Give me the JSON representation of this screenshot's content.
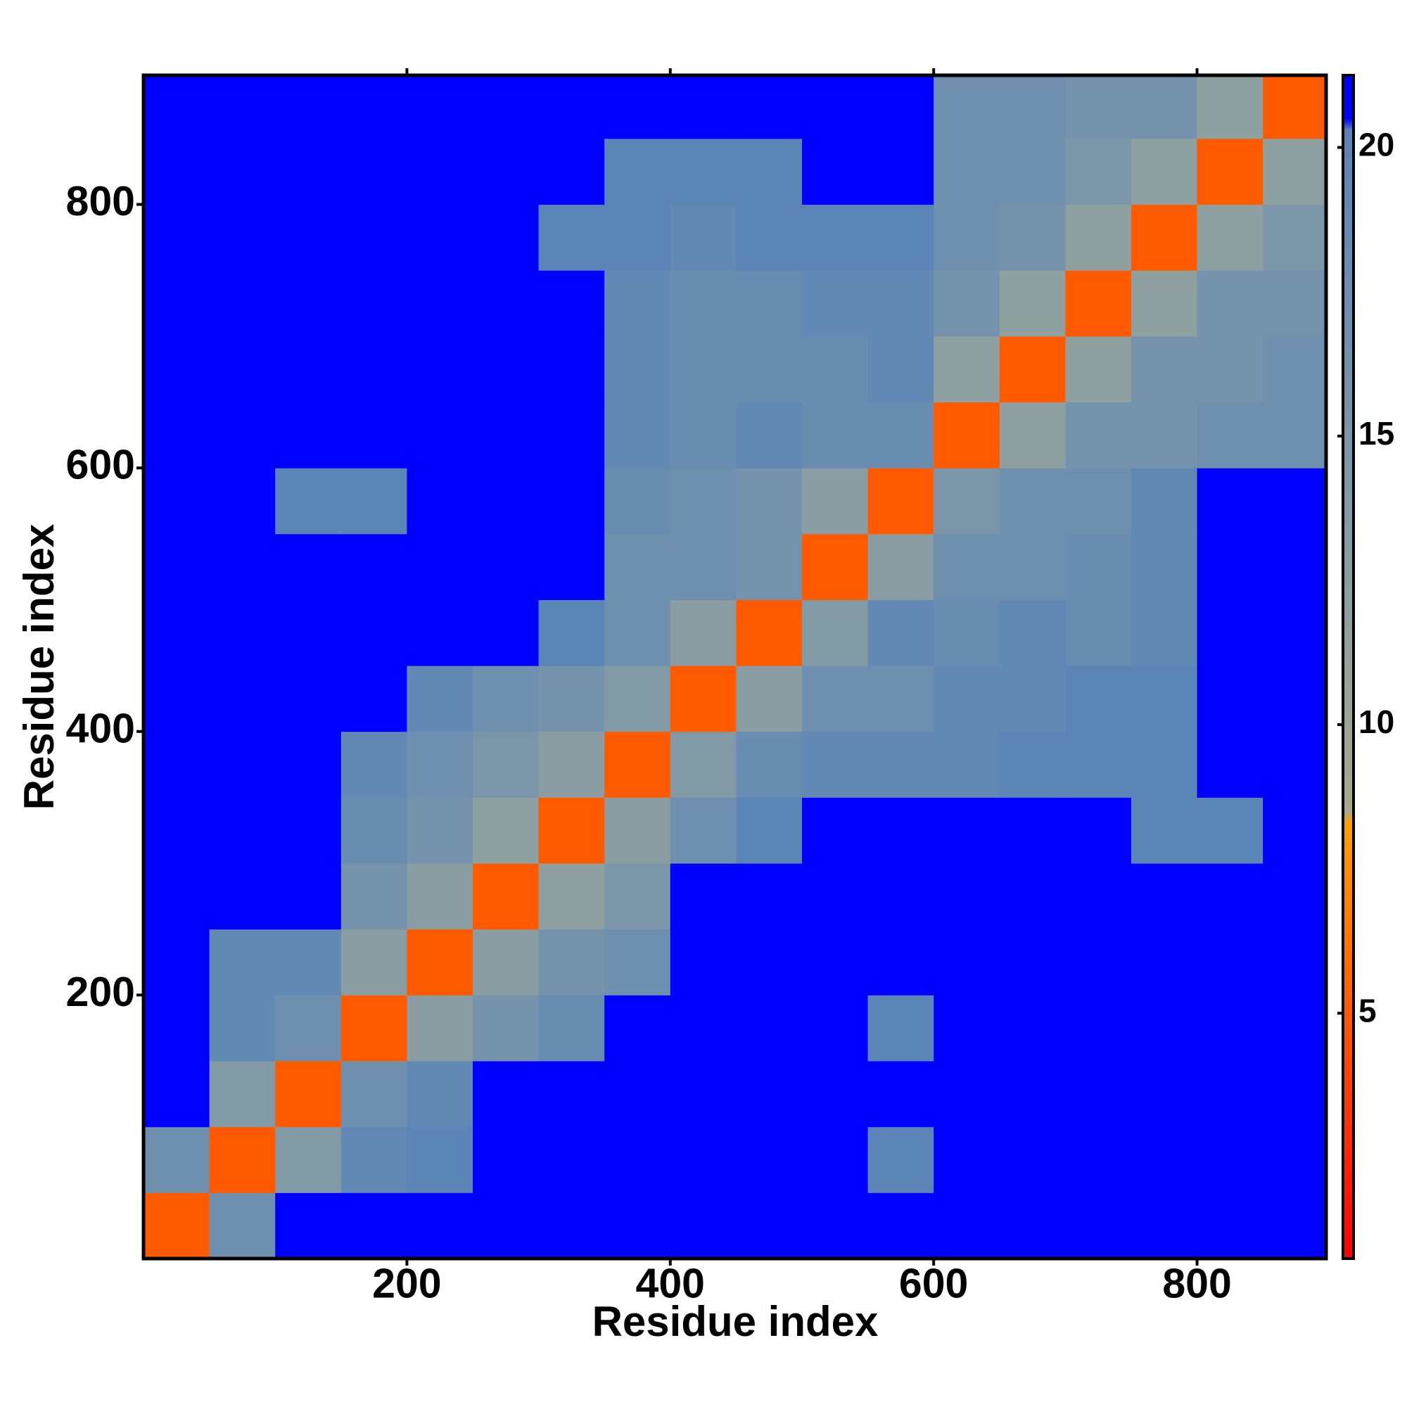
{
  "chart_data": {
    "type": "heatmap",
    "xlabel": "Residue index",
    "ylabel": "Residue index",
    "bins": [
      0,
      50,
      100,
      150,
      200,
      250,
      300,
      350,
      400,
      450,
      500,
      550,
      600,
      650,
      700,
      750,
      800,
      850,
      898
    ],
    "xlim": [
      0,
      898
    ],
    "ylim": [
      0,
      898
    ],
    "xticks": [
      200,
      400,
      600,
      800
    ],
    "yticks": [
      200,
      400,
      600,
      800
    ],
    "zlim": [
      0.75,
      21.25
    ],
    "zticks": [
      5,
      10,
      15,
      20
    ],
    "colorscale": [
      [
        0.75,
        "#ff0000"
      ],
      [
        5,
        "#ff5a00"
      ],
      [
        8.3,
        "#ffa000"
      ],
      [
        8.5,
        "#a8a88a"
      ],
      [
        12,
        "#8fa0a0"
      ],
      [
        20.3,
        "#5a84b8"
      ],
      [
        20.5,
        "#0000ff"
      ],
      [
        21.25,
        "#0000ff"
      ]
    ],
    "z": [
      [
        5,
        17,
        21,
        21,
        21,
        21,
        21,
        21,
        21,
        21,
        21,
        21,
        21,
        21,
        21,
        21,
        21,
        21
      ],
      [
        17,
        5,
        14,
        19,
        20,
        21,
        21,
        21,
        21,
        21,
        21,
        20,
        21,
        21,
        21,
        21,
        21,
        21
      ],
      [
        21,
        14,
        5,
        17,
        19,
        21,
        21,
        21,
        21,
        21,
        21,
        21,
        21,
        21,
        21,
        21,
        21,
        21
      ],
      [
        21,
        19,
        17,
        5,
        13,
        16,
        18,
        21,
        21,
        21,
        21,
        20,
        21,
        21,
        21,
        21,
        21,
        21
      ],
      [
        21,
        19,
        19,
        13,
        5,
        13,
        16,
        17,
        21,
        21,
        21,
        21,
        21,
        21,
        21,
        21,
        21,
        21
      ],
      [
        21,
        21,
        21,
        16,
        13,
        5,
        12,
        15,
        21,
        21,
        21,
        21,
        21,
        21,
        21,
        21,
        21,
        21
      ],
      [
        21,
        21,
        21,
        18,
        16,
        12,
        5,
        13,
        17,
        20,
        21,
        21,
        21,
        21,
        21,
        20,
        20,
        21
      ],
      [
        21,
        21,
        21,
        19,
        17,
        15,
        13,
        5,
        14,
        18,
        19,
        19,
        19,
        20,
        20,
        20,
        21,
        21
      ],
      [
        21,
        21,
        21,
        21,
        19,
        17,
        16,
        14,
        5,
        13,
        17,
        17,
        19,
        19,
        20,
        20,
        21,
        21
      ],
      [
        21,
        21,
        21,
        21,
        21,
        21,
        20,
        17,
        13,
        5,
        14,
        19,
        18,
        19,
        18,
        19,
        21,
        21
      ],
      [
        21,
        21,
        21,
        21,
        21,
        21,
        21,
        17,
        17,
        16,
        5,
        13,
        17,
        17,
        18,
        19,
        21,
        21
      ],
      [
        21,
        21,
        20,
        20,
        21,
        21,
        21,
        18,
        17,
        16,
        13,
        5,
        15,
        17,
        17,
        19,
        21,
        21
      ],
      [
        21,
        21,
        21,
        21,
        21,
        21,
        21,
        19,
        18,
        19,
        18,
        18,
        5,
        12,
        16,
        16,
        17,
        17
      ],
      [
        21,
        21,
        21,
        21,
        21,
        21,
        21,
        19,
        18,
        18,
        18,
        19,
        12,
        5,
        12,
        16,
        16,
        17
      ],
      [
        21,
        21,
        21,
        21,
        21,
        21,
        21,
        19,
        18,
        18,
        19,
        19,
        16,
        12,
        5,
        12,
        16,
        16
      ],
      [
        21,
        21,
        21,
        21,
        21,
        21,
        20,
        20,
        19,
        20,
        20,
        20,
        17,
        16,
        12,
        5,
        12,
        15
      ],
      [
        21,
        21,
        21,
        21,
        21,
        21,
        21,
        20,
        20,
        20,
        21,
        21,
        17,
        17,
        15,
        12,
        5,
        12
      ],
      [
        21,
        21,
        21,
        21,
        21,
        21,
        21,
        21,
        21,
        21,
        21,
        21,
        17,
        17,
        16,
        16,
        12,
        5
      ]
    ]
  }
}
